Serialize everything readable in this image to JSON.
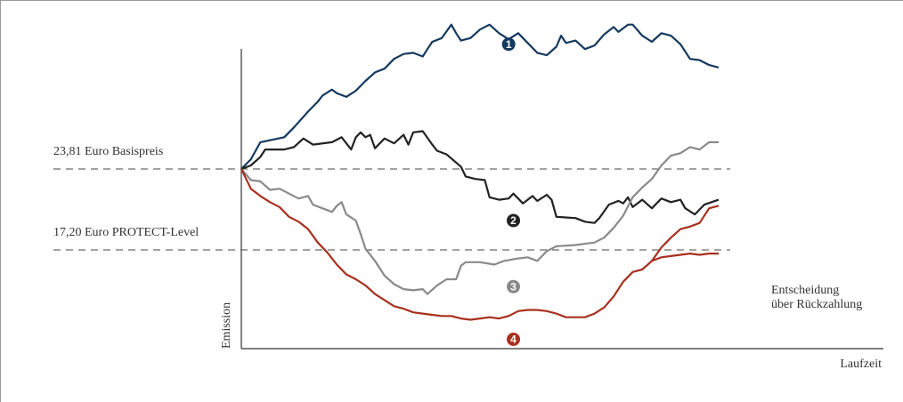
{
  "chart_data": {
    "type": "line",
    "xlabel": "Laufzeit",
    "ylabel": "Emission",
    "annotation_end": [
      "Entscheidung",
      "über Rückzahlung"
    ],
    "reference_lines": [
      {
        "label": "23,81 Euro Basispreis",
        "value": 23.81
      },
      {
        "label": "17,20 Euro PROTECT-Level",
        "value": 17.2
      }
    ],
    "series": [
      {
        "marker": "1",
        "color": "#14395e",
        "points": [
          [
            0,
            23.81
          ],
          [
            0.02,
            24.6
          ],
          [
            0.04,
            26.0
          ],
          [
            0.09,
            26.4
          ],
          [
            0.11,
            27.2
          ],
          [
            0.14,
            28.5
          ],
          [
            0.16,
            29.3
          ],
          [
            0.17,
            29.8
          ],
          [
            0.19,
            30.3
          ],
          [
            0.2,
            30.0
          ],
          [
            0.22,
            29.7
          ],
          [
            0.24,
            30.2
          ],
          [
            0.26,
            31.0
          ],
          [
            0.28,
            31.7
          ],
          [
            0.3,
            32.0
          ],
          [
            0.32,
            32.8
          ],
          [
            0.34,
            33.2
          ],
          [
            0.36,
            33.3
          ],
          [
            0.38,
            33.0
          ],
          [
            0.39,
            33.6
          ],
          [
            0.4,
            34.2
          ],
          [
            0.42,
            34.5
          ],
          [
            0.44,
            35.6
          ],
          [
            0.45,
            34.9
          ],
          [
            0.46,
            34.3
          ],
          [
            0.48,
            34.5
          ],
          [
            0.5,
            35.2
          ],
          [
            0.52,
            35.6
          ],
          [
            0.54,
            34.9
          ],
          [
            0.56,
            34.4
          ],
          [
            0.58,
            34.9
          ],
          [
            0.6,
            34.1
          ],
          [
            0.62,
            33.3
          ],
          [
            0.64,
            33.1
          ],
          [
            0.66,
            33.8
          ],
          [
            0.67,
            34.7
          ],
          [
            0.68,
            34.1
          ],
          [
            0.7,
            34.3
          ],
          [
            0.72,
            33.6
          ],
          [
            0.74,
            33.9
          ],
          [
            0.76,
            34.8
          ],
          [
            0.78,
            35.4
          ],
          [
            0.79,
            35.0
          ],
          [
            0.81,
            35.6
          ],
          [
            0.82,
            35.6
          ],
          [
            0.84,
            34.7
          ],
          [
            0.86,
            34.2
          ],
          [
            0.88,
            34.9
          ],
          [
            0.9,
            34.7
          ],
          [
            0.92,
            34.0
          ],
          [
            0.94,
            32.8
          ],
          [
            0.96,
            32.7
          ],
          [
            0.98,
            32.3
          ],
          [
            1.0,
            32.1
          ]
        ]
      },
      {
        "marker": "2",
        "color": "#222222",
        "points": [
          [
            0,
            23.81
          ],
          [
            0.02,
            24.1
          ],
          [
            0.04,
            24.8
          ],
          [
            0.05,
            25.4
          ],
          [
            0.09,
            25.4
          ],
          [
            0.11,
            25.6
          ],
          [
            0.13,
            26.3
          ],
          [
            0.15,
            25.8
          ],
          [
            0.19,
            26.0
          ],
          [
            0.21,
            26.4
          ],
          [
            0.23,
            25.4
          ],
          [
            0.24,
            26.4
          ],
          [
            0.25,
            26.8
          ],
          [
            0.26,
            26.4
          ],
          [
            0.27,
            26.6
          ],
          [
            0.28,
            25.5
          ],
          [
            0.3,
            26.3
          ],
          [
            0.32,
            25.9
          ],
          [
            0.34,
            26.6
          ],
          [
            0.35,
            25.8
          ],
          [
            0.36,
            26.8
          ],
          [
            0.38,
            26.9
          ],
          [
            0.4,
            25.8
          ],
          [
            0.41,
            25.3
          ],
          [
            0.43,
            25.0
          ],
          [
            0.46,
            24.0
          ],
          [
            0.47,
            23.2
          ],
          [
            0.49,
            23.0
          ],
          [
            0.51,
            22.9
          ],
          [
            0.52,
            21.5
          ],
          [
            0.54,
            21.3
          ],
          [
            0.56,
            21.4
          ],
          [
            0.57,
            21.8
          ],
          [
            0.59,
            21.0
          ],
          [
            0.61,
            21.6
          ],
          [
            0.62,
            21.2
          ],
          [
            0.64,
            21.7
          ],
          [
            0.65,
            21.3
          ],
          [
            0.66,
            19.9
          ],
          [
            0.7,
            19.8
          ],
          [
            0.72,
            19.5
          ],
          [
            0.74,
            19.4
          ],
          [
            0.75,
            19.8
          ],
          [
            0.77,
            20.9
          ],
          [
            0.79,
            21.2
          ],
          [
            0.8,
            21.0
          ],
          [
            0.81,
            21.5
          ],
          [
            0.82,
            20.7
          ],
          [
            0.84,
            21.3
          ],
          [
            0.86,
            20.6
          ],
          [
            0.88,
            21.4
          ],
          [
            0.9,
            21.1
          ],
          [
            0.92,
            21.3
          ],
          [
            0.93,
            20.6
          ],
          [
            0.95,
            20.1
          ],
          [
            0.97,
            20.9
          ],
          [
            1.0,
            21.3
          ]
        ]
      },
      {
        "marker": "3",
        "color": "#8a8a8a",
        "points": [
          [
            0,
            23.81
          ],
          [
            0.02,
            22.9
          ],
          [
            0.04,
            22.8
          ],
          [
            0.06,
            22.1
          ],
          [
            0.08,
            22.2
          ],
          [
            0.1,
            21.8
          ],
          [
            0.12,
            21.4
          ],
          [
            0.14,
            21.6
          ],
          [
            0.15,
            20.9
          ],
          [
            0.17,
            20.6
          ],
          [
            0.19,
            20.3
          ],
          [
            0.2,
            20.8
          ],
          [
            0.21,
            21.1
          ],
          [
            0.22,
            20.1
          ],
          [
            0.24,
            19.6
          ],
          [
            0.25,
            18.5
          ],
          [
            0.26,
            17.3
          ],
          [
            0.28,
            16.3
          ],
          [
            0.3,
            15.1
          ],
          [
            0.32,
            14.4
          ],
          [
            0.34,
            14.0
          ],
          [
            0.36,
            13.9
          ],
          [
            0.38,
            14.0
          ],
          [
            0.39,
            13.6
          ],
          [
            0.41,
            14.3
          ],
          [
            0.43,
            14.8
          ],
          [
            0.45,
            14.8
          ],
          [
            0.46,
            15.9
          ],
          [
            0.47,
            16.2
          ],
          [
            0.5,
            16.2
          ],
          [
            0.53,
            16.0
          ],
          [
            0.55,
            16.3
          ],
          [
            0.58,
            16.5
          ],
          [
            0.6,
            16.6
          ],
          [
            0.62,
            16.3
          ],
          [
            0.64,
            17.1
          ],
          [
            0.66,
            17.5
          ],
          [
            0.7,
            17.6
          ],
          [
            0.74,
            17.8
          ],
          [
            0.76,
            18.2
          ],
          [
            0.78,
            19.0
          ],
          [
            0.8,
            20.0
          ],
          [
            0.82,
            21.5
          ],
          [
            0.84,
            22.3
          ],
          [
            0.86,
            23.0
          ],
          [
            0.88,
            24.1
          ],
          [
            0.9,
            24.9
          ],
          [
            0.92,
            25.1
          ],
          [
            0.94,
            25.6
          ],
          [
            0.96,
            25.4
          ],
          [
            0.98,
            26.0
          ],
          [
            1.0,
            26.0
          ]
        ]
      },
      {
        "marker": "4",
        "color": "#a8301e",
        "points": [
          [
            0,
            23.81
          ],
          [
            0.02,
            22.2
          ],
          [
            0.04,
            21.6
          ],
          [
            0.06,
            21.1
          ],
          [
            0.08,
            20.7
          ],
          [
            0.1,
            19.9
          ],
          [
            0.12,
            19.5
          ],
          [
            0.14,
            18.9
          ],
          [
            0.16,
            17.8
          ],
          [
            0.18,
            17.0
          ],
          [
            0.2,
            16.0
          ],
          [
            0.22,
            15.2
          ],
          [
            0.24,
            14.8
          ],
          [
            0.26,
            14.3
          ],
          [
            0.28,
            13.6
          ],
          [
            0.3,
            13.1
          ],
          [
            0.32,
            12.6
          ],
          [
            0.34,
            12.4
          ],
          [
            0.36,
            12.1
          ],
          [
            0.38,
            12.0
          ],
          [
            0.4,
            11.9
          ],
          [
            0.42,
            11.8
          ],
          [
            0.44,
            11.8
          ],
          [
            0.46,
            11.6
          ],
          [
            0.48,
            11.5
          ],
          [
            0.5,
            11.6
          ],
          [
            0.52,
            11.7
          ],
          [
            0.54,
            11.6
          ],
          [
            0.56,
            11.8
          ],
          [
            0.58,
            12.2
          ],
          [
            0.6,
            12.3
          ],
          [
            0.62,
            12.3
          ],
          [
            0.64,
            12.2
          ],
          [
            0.66,
            12.0
          ],
          [
            0.68,
            11.7
          ],
          [
            0.7,
            11.7
          ],
          [
            0.72,
            11.7
          ],
          [
            0.74,
            12.0
          ],
          [
            0.76,
            12.5
          ],
          [
            0.78,
            13.4
          ],
          [
            0.8,
            14.6
          ],
          [
            0.82,
            15.4
          ],
          [
            0.84,
            15.6
          ],
          [
            0.86,
            16.3
          ],
          [
            0.88,
            16.6
          ],
          [
            0.9,
            16.7
          ],
          [
            0.92,
            16.8
          ],
          [
            0.94,
            16.9
          ],
          [
            0.96,
            16.8
          ],
          [
            0.98,
            16.9
          ],
          [
            1.0,
            16.9
          ]
        ]
      },
      {
        "marker": "",
        "color": "#a8301e",
        "points": [
          [
            0.86,
            16.3
          ],
          [
            0.88,
            17.4
          ],
          [
            0.9,
            18.2
          ],
          [
            0.92,
            18.9
          ],
          [
            0.94,
            19.1
          ],
          [
            0.96,
            19.4
          ],
          [
            0.98,
            20.6
          ],
          [
            1.0,
            20.8
          ]
        ]
      }
    ]
  }
}
